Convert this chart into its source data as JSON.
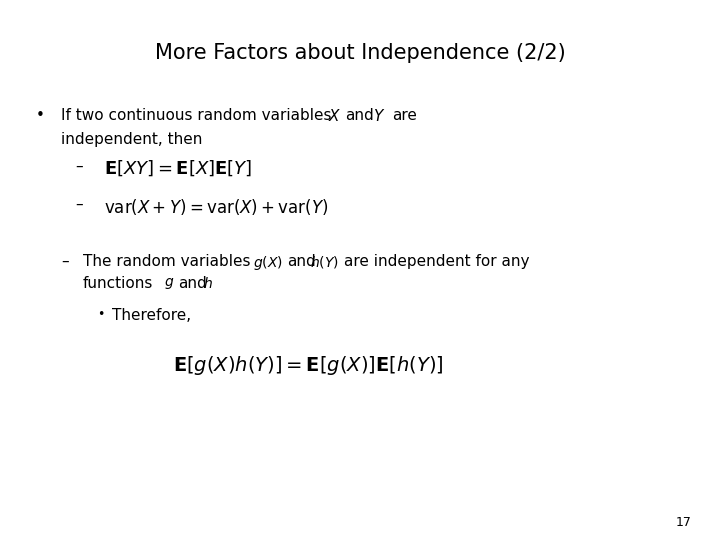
{
  "title": "More Factors about Independence (2/2)",
  "background_color": "#ffffff",
  "text_color": "#000000",
  "page_number": "17",
  "title_fontsize": 15,
  "body_fontsize": 11,
  "math_fontsize": 12,
  "eq1_fontsize": 13,
  "eq2_fontsize": 12,
  "eq_final_fontsize": 14
}
